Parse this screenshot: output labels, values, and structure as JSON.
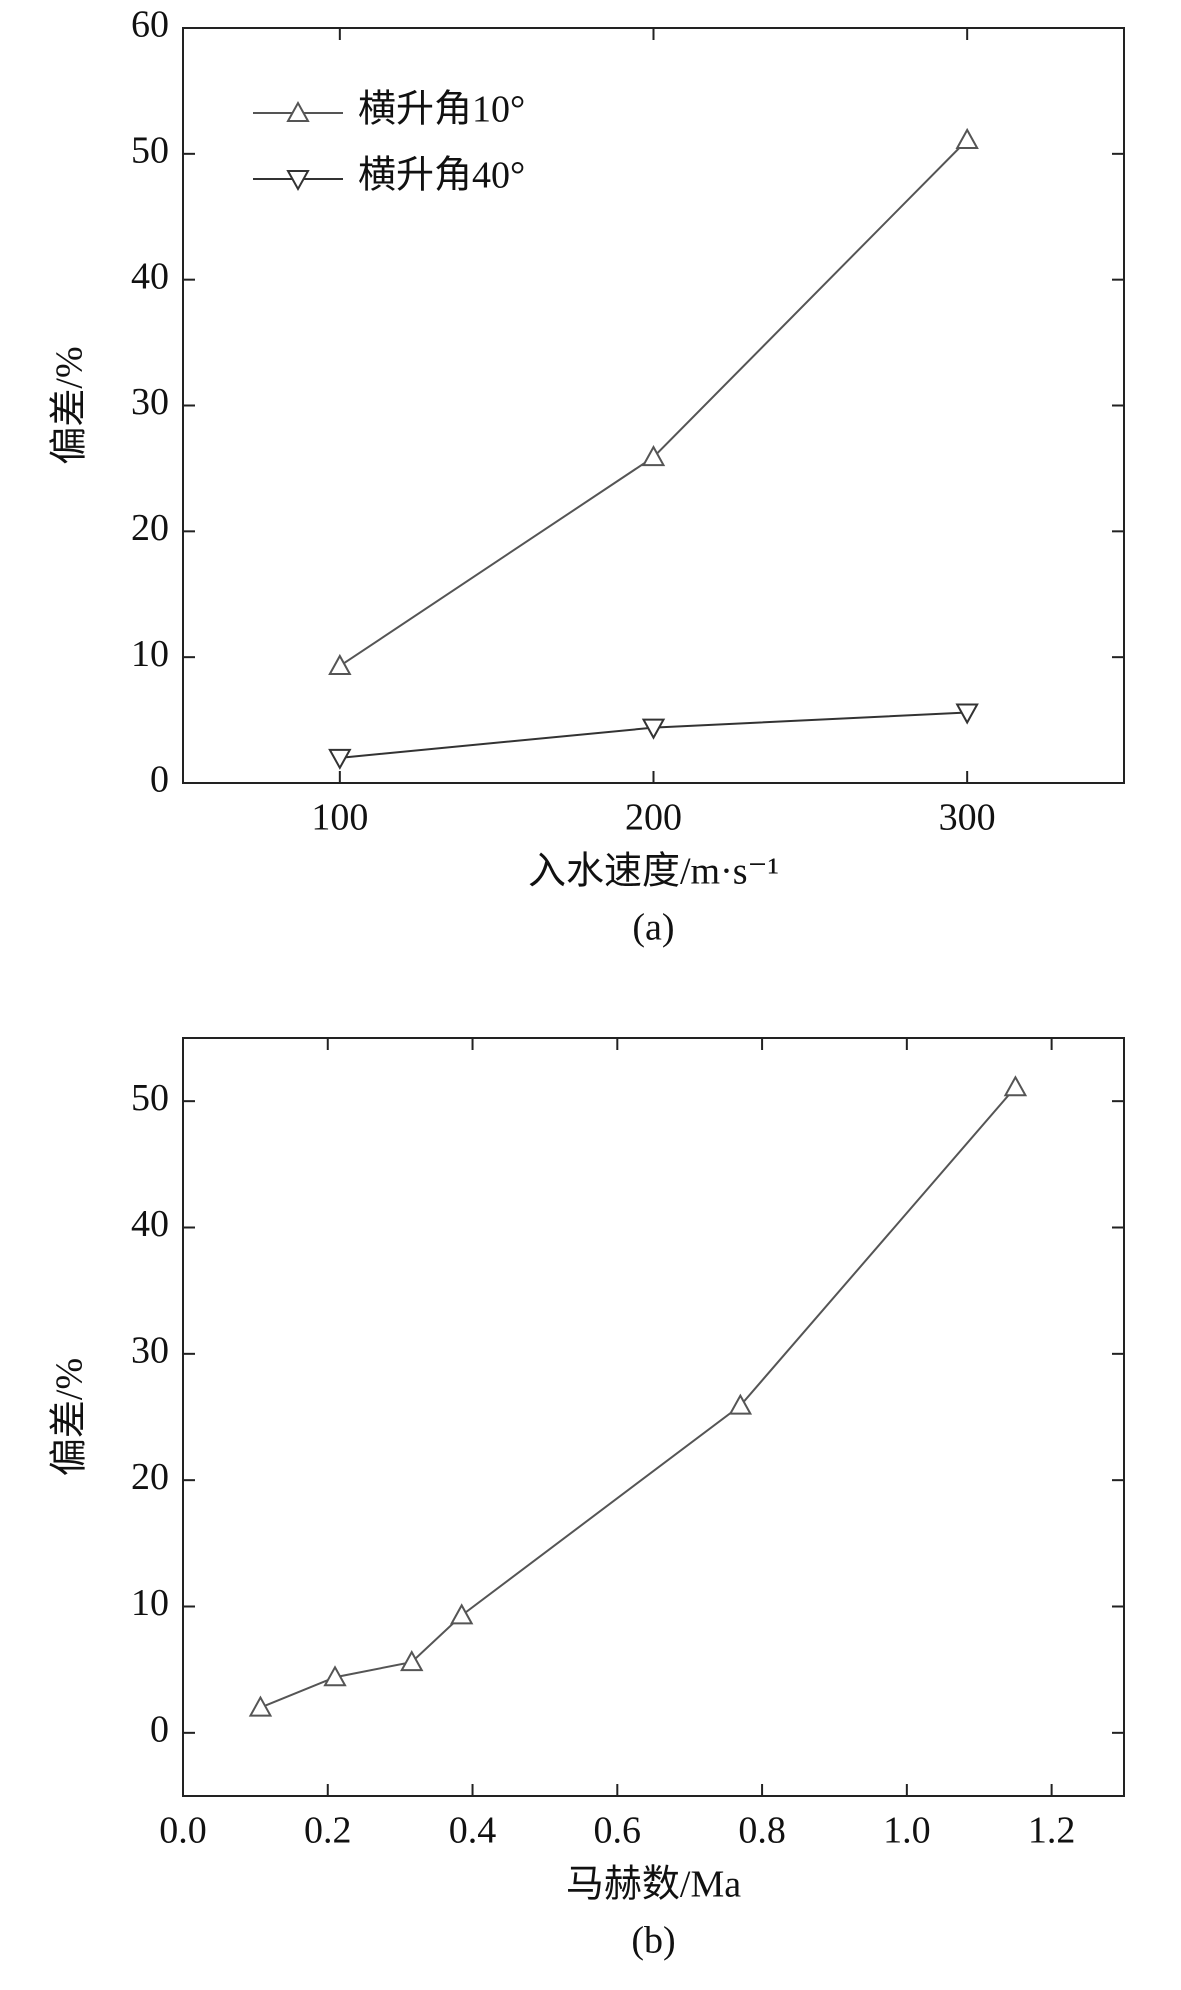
{
  "chart_data": [
    {
      "type": "line",
      "caption": "(a)",
      "xlabel": "入水速度/m·s⁻¹",
      "ylabel": "偏差/%",
      "x": [
        100,
        200,
        300
      ],
      "xlim": [
        50,
        350
      ],
      "xticks": [
        100,
        200,
        300
      ],
      "ylim": [
        0,
        60
      ],
      "yticks": [
        0,
        10,
        20,
        30,
        40,
        50,
        60
      ],
      "legend": "upper left",
      "series": [
        {
          "name": "横升角10°",
          "color": "#555555",
          "marker": "triangle-up",
          "values": [
            9.3,
            25.9,
            51.1
          ]
        },
        {
          "name": "横升角40°",
          "color": "#333333",
          "marker": "triangle-down",
          "values": [
            2.0,
            4.4,
            5.6
          ]
        }
      ]
    },
    {
      "type": "line",
      "caption": "(b)",
      "xlabel": "马赫数/Ma",
      "ylabel": "偏差/%",
      "xlim": [
        0,
        1.3
      ],
      "xticks": [
        {
          "value": 0,
          "label": "0.0"
        },
        0.2,
        0.4,
        0.6,
        0.8,
        {
          "value": 1,
          "label": "1.0"
        },
        1.2
      ],
      "ylim": [
        -5,
        55
      ],
      "yticks": [
        0,
        10,
        20,
        30,
        40,
        50
      ],
      "series": [
        {
          "color": "#555555",
          "marker": "triangle-up",
          "x": [
            0.107,
            0.21,
            0.316,
            0.385,
            0.77,
            1.15
          ],
          "values": [
            2.0,
            4.4,
            5.6,
            9.3,
            25.9,
            51.1
          ]
        }
      ]
    }
  ]
}
